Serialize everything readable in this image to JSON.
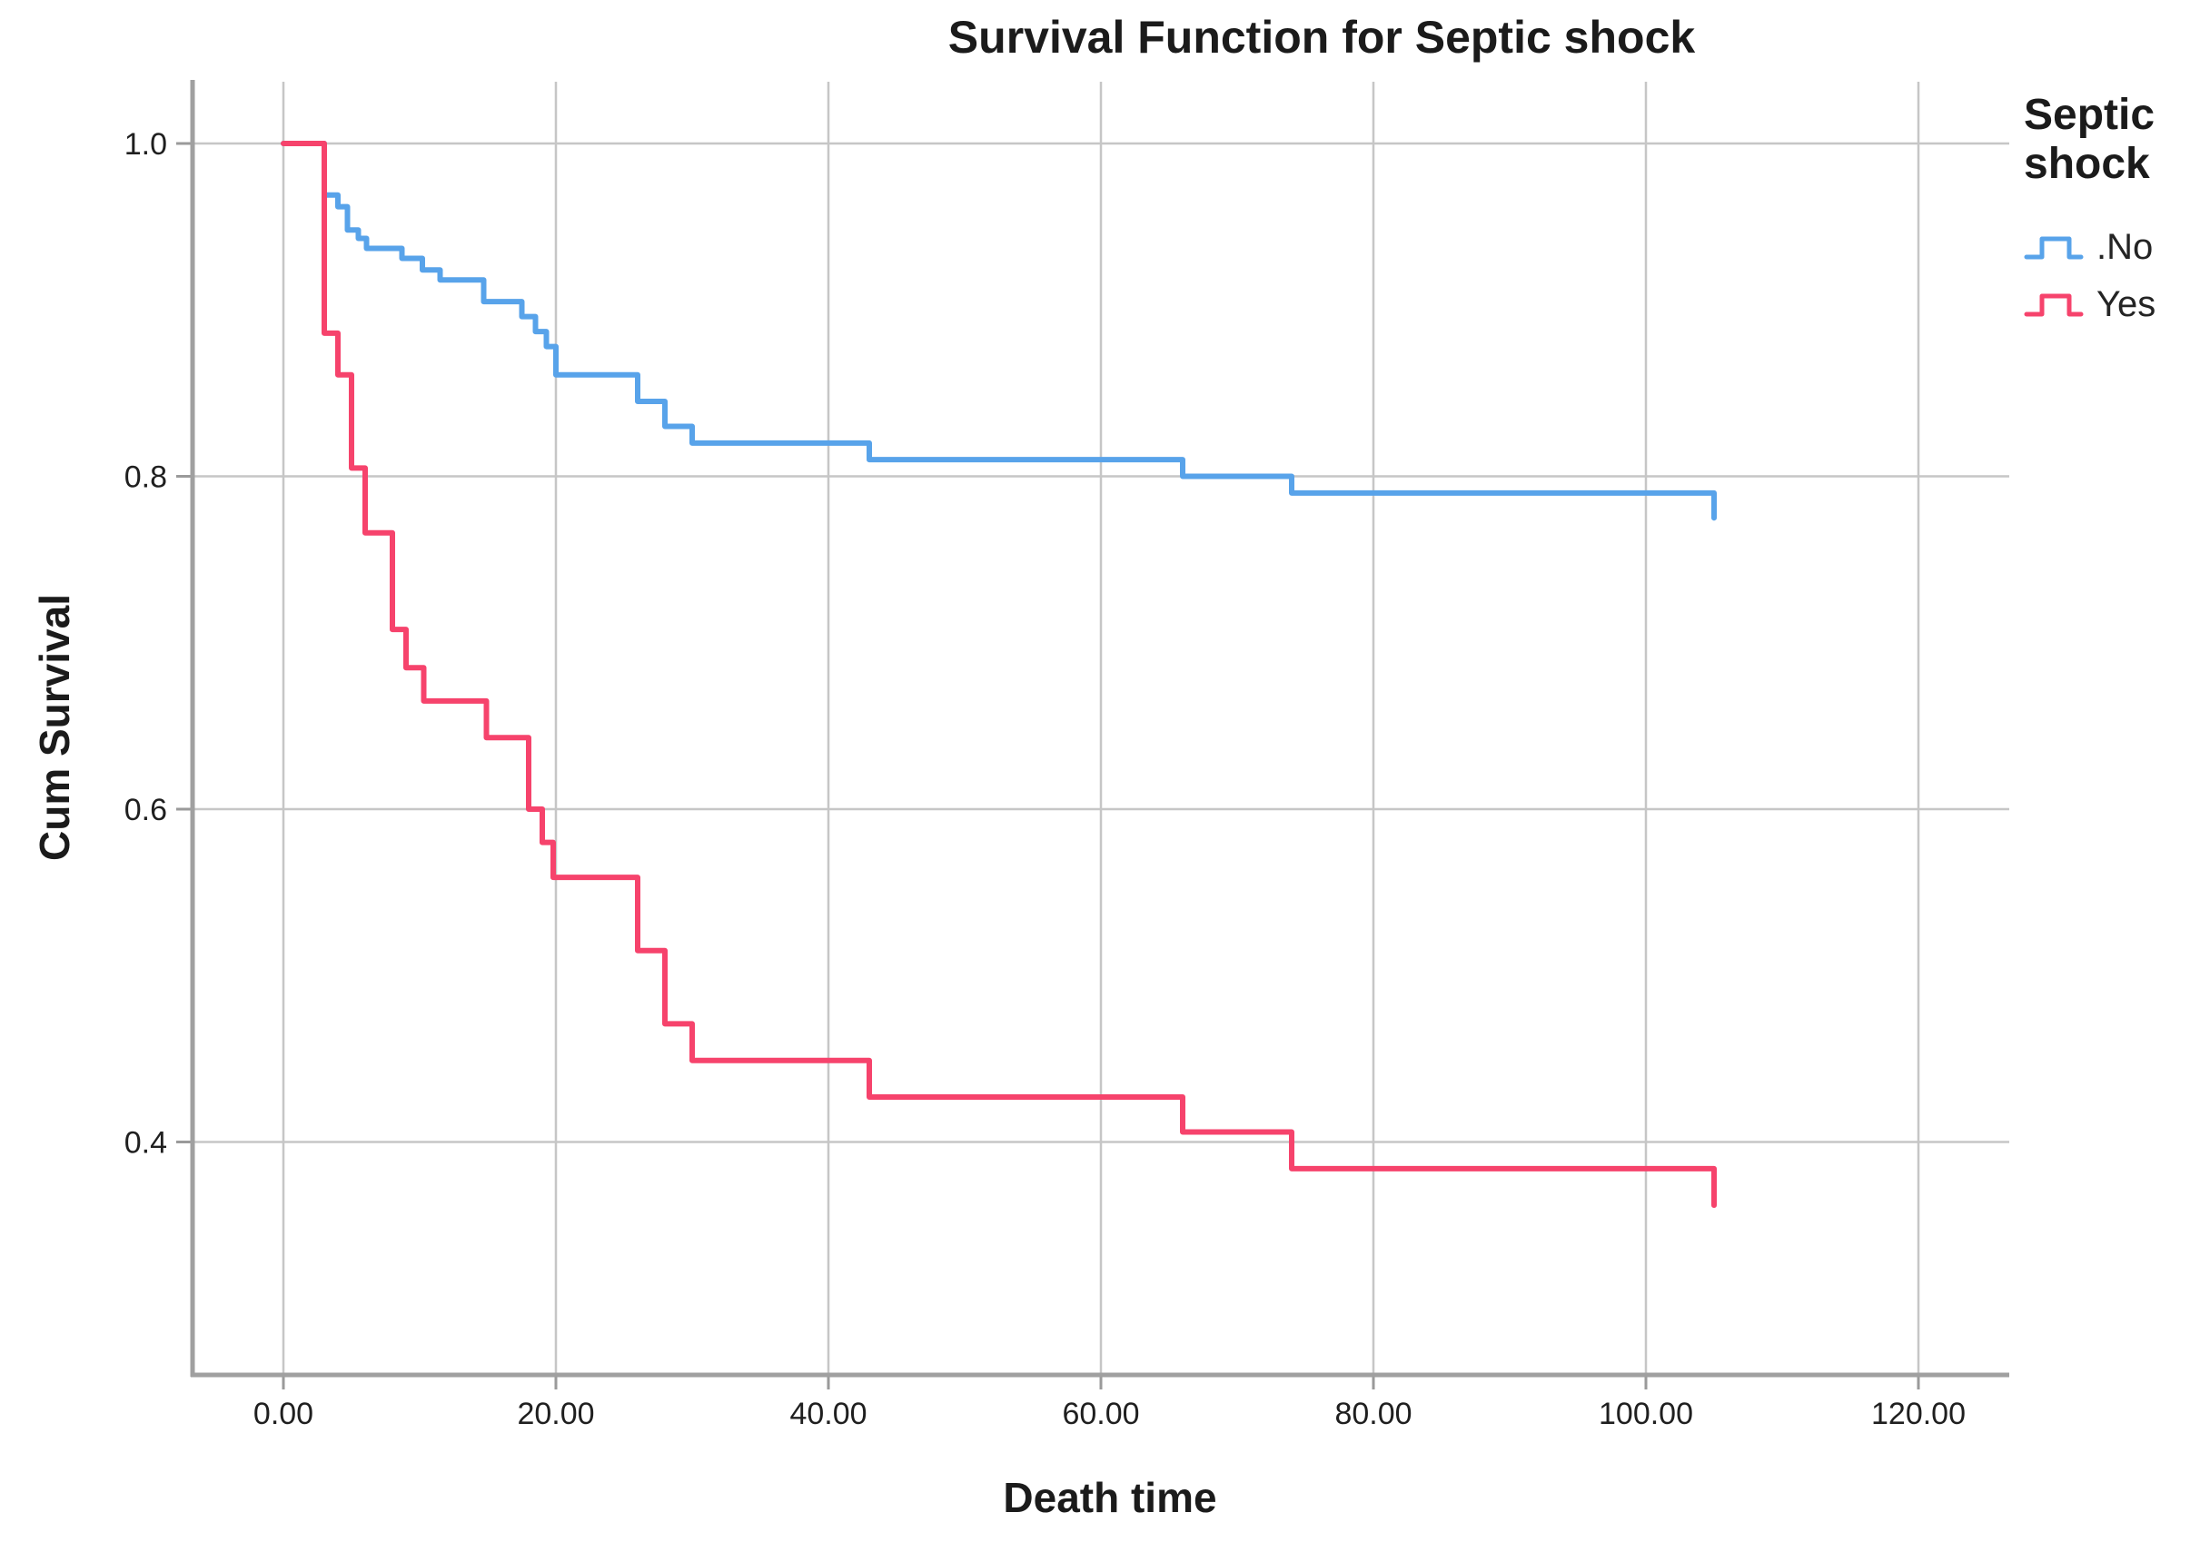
{
  "figure": {
    "title": "Survival Function for Septic shock",
    "x_axis_label": "Death time",
    "y_axis_label": "Cum Survival"
  },
  "legend": {
    "title": "Septic shock",
    "entries": [
      {
        "label": ".No",
        "color": "#58a3ea"
      },
      {
        "label": "Yes",
        "color": "#f6436c"
      }
    ]
  },
  "chart_data": {
    "type": "line",
    "subtype": "kaplan-meier-step-survival",
    "title": "Survival Function for Septic shock",
    "xlabel": "Death time",
    "ylabel": "Cum Survival",
    "xlim": [
      -6.5,
      127
    ],
    "ylim": [
      0.26,
      1.035
    ],
    "grid": true,
    "legend_position": "right",
    "x_ticks": {
      "values": [
        0,
        20,
        40,
        60,
        80,
        100,
        120
      ],
      "labels": [
        "0.00",
        "20.00",
        "40.00",
        "60.00",
        "80.00",
        "100.00",
        "120.00"
      ]
    },
    "y_ticks": {
      "values": [
        1.0,
        0.8,
        0.6,
        0.4
      ],
      "labels": [
        "1.0",
        "0.8",
        "0.6",
        "0.4"
      ]
    },
    "series": [
      {
        "name": ".No",
        "color": "#58a3ea",
        "steps": [
          [
            0,
            1.0
          ],
          [
            3,
            0.969
          ],
          [
            4,
            0.962
          ],
          [
            4.7,
            0.948
          ],
          [
            5.5,
            0.943
          ],
          [
            6.1,
            0.937
          ],
          [
            8.7,
            0.931
          ],
          [
            10.2,
            0.924
          ],
          [
            11.5,
            0.918
          ],
          [
            14.7,
            0.905
          ],
          [
            17.5,
            0.896
          ],
          [
            18.5,
            0.887
          ],
          [
            19.3,
            0.878
          ],
          [
            20,
            0.861
          ],
          [
            26,
            0.845
          ],
          [
            28,
            0.83
          ],
          [
            30,
            0.82
          ],
          [
            43,
            0.81
          ],
          [
            66,
            0.8
          ],
          [
            74,
            0.79
          ],
          [
            105,
            0.775
          ]
        ]
      },
      {
        "name": "Yes",
        "color": "#f6436c",
        "steps": [
          [
            0,
            1.0
          ],
          [
            3,
            0.886
          ],
          [
            4,
            0.861
          ],
          [
            5,
            0.805
          ],
          [
            6,
            0.766
          ],
          [
            8,
            0.708
          ],
          [
            9,
            0.685
          ],
          [
            10.3,
            0.665
          ],
          [
            14.9,
            0.643
          ],
          [
            18,
            0.6
          ],
          [
            19,
            0.58
          ],
          [
            19.8,
            0.559
          ],
          [
            26,
            0.515
          ],
          [
            28,
            0.471
          ],
          [
            30,
            0.449
          ],
          [
            43,
            0.427
          ],
          [
            66,
            0.406
          ],
          [
            74,
            0.384
          ],
          [
            105,
            0.362
          ]
        ]
      }
    ]
  }
}
